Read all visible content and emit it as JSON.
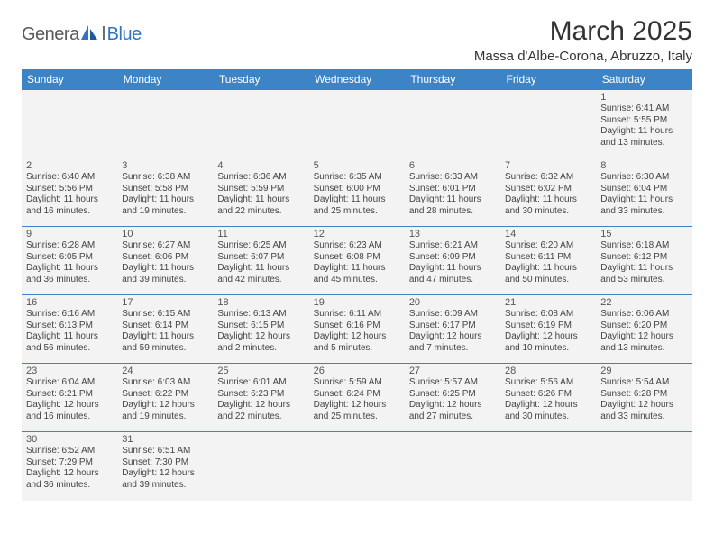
{
  "branding": {
    "text_general": "Genera",
    "text_l": "l",
    "text_blue": "Blue",
    "logo_color_blue": "#2f75c1",
    "logo_color_gray": "#5a5a5a"
  },
  "header": {
    "month_title": "March 2025",
    "location": "Massa d'Albe-Corona, Abruzzo, Italy"
  },
  "calendar": {
    "header_bg": "#3d84c6",
    "header_fg": "#ffffff",
    "cell_bg": "#f3f3f3",
    "border_color": "#3d84c6",
    "day_names": [
      "Sunday",
      "Monday",
      "Tuesday",
      "Wednesday",
      "Thursday",
      "Friday",
      "Saturday"
    ],
    "weeks": [
      [
        null,
        null,
        null,
        null,
        null,
        null,
        {
          "n": "1",
          "sunrise": "Sunrise: 6:41 AM",
          "sunset": "Sunset: 5:55 PM",
          "daylight": "Daylight: 11 hours and 13 minutes."
        }
      ],
      [
        {
          "n": "2",
          "sunrise": "Sunrise: 6:40 AM",
          "sunset": "Sunset: 5:56 PM",
          "daylight": "Daylight: 11 hours and 16 minutes."
        },
        {
          "n": "3",
          "sunrise": "Sunrise: 6:38 AM",
          "sunset": "Sunset: 5:58 PM",
          "daylight": "Daylight: 11 hours and 19 minutes."
        },
        {
          "n": "4",
          "sunrise": "Sunrise: 6:36 AM",
          "sunset": "Sunset: 5:59 PM",
          "daylight": "Daylight: 11 hours and 22 minutes."
        },
        {
          "n": "5",
          "sunrise": "Sunrise: 6:35 AM",
          "sunset": "Sunset: 6:00 PM",
          "daylight": "Daylight: 11 hours and 25 minutes."
        },
        {
          "n": "6",
          "sunrise": "Sunrise: 6:33 AM",
          "sunset": "Sunset: 6:01 PM",
          "daylight": "Daylight: 11 hours and 28 minutes."
        },
        {
          "n": "7",
          "sunrise": "Sunrise: 6:32 AM",
          "sunset": "Sunset: 6:02 PM",
          "daylight": "Daylight: 11 hours and 30 minutes."
        },
        {
          "n": "8",
          "sunrise": "Sunrise: 6:30 AM",
          "sunset": "Sunset: 6:04 PM",
          "daylight": "Daylight: 11 hours and 33 minutes."
        }
      ],
      [
        {
          "n": "9",
          "sunrise": "Sunrise: 6:28 AM",
          "sunset": "Sunset: 6:05 PM",
          "daylight": "Daylight: 11 hours and 36 minutes."
        },
        {
          "n": "10",
          "sunrise": "Sunrise: 6:27 AM",
          "sunset": "Sunset: 6:06 PM",
          "daylight": "Daylight: 11 hours and 39 minutes."
        },
        {
          "n": "11",
          "sunrise": "Sunrise: 6:25 AM",
          "sunset": "Sunset: 6:07 PM",
          "daylight": "Daylight: 11 hours and 42 minutes."
        },
        {
          "n": "12",
          "sunrise": "Sunrise: 6:23 AM",
          "sunset": "Sunset: 6:08 PM",
          "daylight": "Daylight: 11 hours and 45 minutes."
        },
        {
          "n": "13",
          "sunrise": "Sunrise: 6:21 AM",
          "sunset": "Sunset: 6:09 PM",
          "daylight": "Daylight: 11 hours and 47 minutes."
        },
        {
          "n": "14",
          "sunrise": "Sunrise: 6:20 AM",
          "sunset": "Sunset: 6:11 PM",
          "daylight": "Daylight: 11 hours and 50 minutes."
        },
        {
          "n": "15",
          "sunrise": "Sunrise: 6:18 AM",
          "sunset": "Sunset: 6:12 PM",
          "daylight": "Daylight: 11 hours and 53 minutes."
        }
      ],
      [
        {
          "n": "16",
          "sunrise": "Sunrise: 6:16 AM",
          "sunset": "Sunset: 6:13 PM",
          "daylight": "Daylight: 11 hours and 56 minutes."
        },
        {
          "n": "17",
          "sunrise": "Sunrise: 6:15 AM",
          "sunset": "Sunset: 6:14 PM",
          "daylight": "Daylight: 11 hours and 59 minutes."
        },
        {
          "n": "18",
          "sunrise": "Sunrise: 6:13 AM",
          "sunset": "Sunset: 6:15 PM",
          "daylight": "Daylight: 12 hours and 2 minutes."
        },
        {
          "n": "19",
          "sunrise": "Sunrise: 6:11 AM",
          "sunset": "Sunset: 6:16 PM",
          "daylight": "Daylight: 12 hours and 5 minutes."
        },
        {
          "n": "20",
          "sunrise": "Sunrise: 6:09 AM",
          "sunset": "Sunset: 6:17 PM",
          "daylight": "Daylight: 12 hours and 7 minutes."
        },
        {
          "n": "21",
          "sunrise": "Sunrise: 6:08 AM",
          "sunset": "Sunset: 6:19 PM",
          "daylight": "Daylight: 12 hours and 10 minutes."
        },
        {
          "n": "22",
          "sunrise": "Sunrise: 6:06 AM",
          "sunset": "Sunset: 6:20 PM",
          "daylight": "Daylight: 12 hours and 13 minutes."
        }
      ],
      [
        {
          "n": "23",
          "sunrise": "Sunrise: 6:04 AM",
          "sunset": "Sunset: 6:21 PM",
          "daylight": "Daylight: 12 hours and 16 minutes."
        },
        {
          "n": "24",
          "sunrise": "Sunrise: 6:03 AM",
          "sunset": "Sunset: 6:22 PM",
          "daylight": "Daylight: 12 hours and 19 minutes."
        },
        {
          "n": "25",
          "sunrise": "Sunrise: 6:01 AM",
          "sunset": "Sunset: 6:23 PM",
          "daylight": "Daylight: 12 hours and 22 minutes."
        },
        {
          "n": "26",
          "sunrise": "Sunrise: 5:59 AM",
          "sunset": "Sunset: 6:24 PM",
          "daylight": "Daylight: 12 hours and 25 minutes."
        },
        {
          "n": "27",
          "sunrise": "Sunrise: 5:57 AM",
          "sunset": "Sunset: 6:25 PM",
          "daylight": "Daylight: 12 hours and 27 minutes."
        },
        {
          "n": "28",
          "sunrise": "Sunrise: 5:56 AM",
          "sunset": "Sunset: 6:26 PM",
          "daylight": "Daylight: 12 hours and 30 minutes."
        },
        {
          "n": "29",
          "sunrise": "Sunrise: 5:54 AM",
          "sunset": "Sunset: 6:28 PM",
          "daylight": "Daylight: 12 hours and 33 minutes."
        }
      ],
      [
        {
          "n": "30",
          "sunrise": "Sunrise: 6:52 AM",
          "sunset": "Sunset: 7:29 PM",
          "daylight": "Daylight: 12 hours and 36 minutes."
        },
        {
          "n": "31",
          "sunrise": "Sunrise: 6:51 AM",
          "sunset": "Sunset: 7:30 PM",
          "daylight": "Daylight: 12 hours and 39 minutes."
        },
        null,
        null,
        null,
        null,
        null
      ]
    ]
  }
}
